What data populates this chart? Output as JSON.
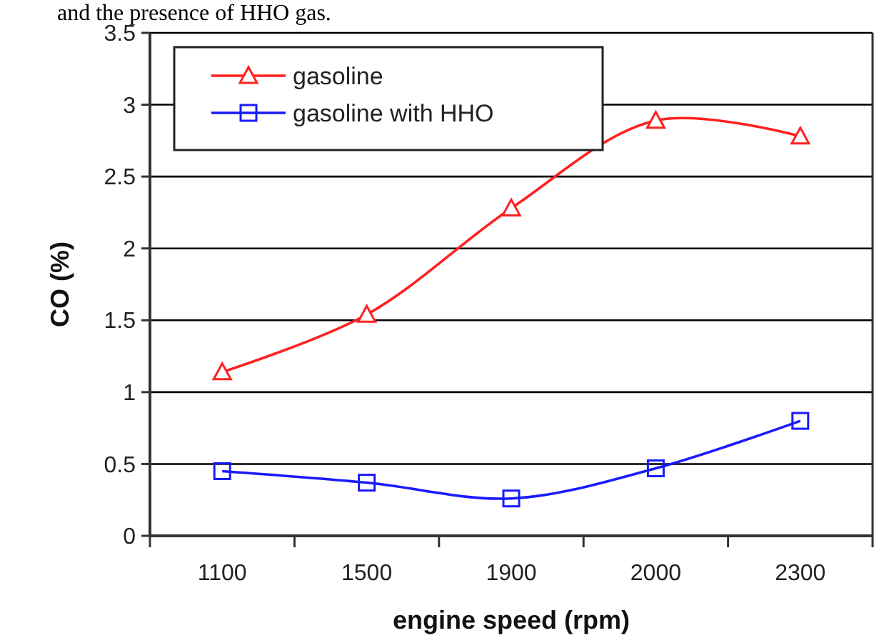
{
  "chart_data": {
    "type": "line",
    "xlabel": "engine speed (rpm)",
    "ylabel": "CO (%)",
    "annotations": [
      "and the presence of HHO gas."
    ],
    "categories": [
      "1100",
      "1500",
      "1900",
      "2000",
      "2300"
    ],
    "series": [
      {
        "name": "gasoline",
        "color": "#ff2020",
        "marker": "triangle",
        "values": [
          1.14,
          1.54,
          2.28,
          2.89,
          2.78
        ]
      },
      {
        "name": "gasoline with HHO",
        "color": "#1a1aff",
        "marker": "square",
        "values": [
          0.45,
          0.37,
          0.26,
          0.47,
          0.8
        ]
      }
    ],
    "ylim": [
      0,
      3.5
    ],
    "yticks": [
      0,
      0.5,
      1,
      1.5,
      2,
      2.5,
      3,
      3.5
    ],
    "grid": "y",
    "legend": "top left",
    "line_style": "solid"
  }
}
